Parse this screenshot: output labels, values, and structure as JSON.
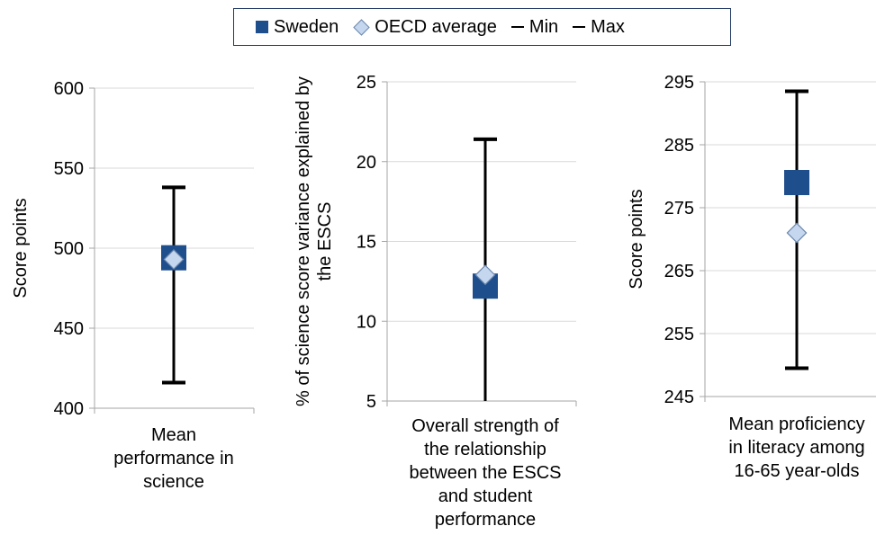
{
  "legend": {
    "sweden": "Sweden",
    "oecd": "OECD average",
    "min": "Min",
    "max": "Max"
  },
  "colors": {
    "sweden": "#1f4e8c",
    "oecd_fill": "#c5d7ee",
    "oecd_stroke": "#6b87ad",
    "whisker": "#000000",
    "grid": "#d9d9d9",
    "axis": "#a6a6a6"
  },
  "chart_data": [
    {
      "type": "scatter",
      "ylabel": "Score points",
      "ylim": [
        400,
        600
      ],
      "yticks": [
        400,
        450,
        500,
        550,
        600
      ],
      "category": [
        "Mean",
        "performance in",
        "science"
      ],
      "sweden": 494,
      "oecd_average": 493,
      "min": 416,
      "max": 538,
      "grid": true
    },
    {
      "type": "scatter",
      "ylabel": [
        "% of science score variance explained by",
        "the ESCS"
      ],
      "ylim": [
        5,
        25
      ],
      "yticks": [
        5,
        10,
        15,
        20,
        25
      ],
      "category": [
        "Overall strength of",
        "the relationship",
        "between the ESCS",
        "and student",
        "performance"
      ],
      "sweden": 12.2,
      "oecd_average": 12.9,
      "min": 5,
      "max": 21.4,
      "grid": true
    },
    {
      "type": "scatter",
      "ylabel": "Score points",
      "ylim": [
        245,
        295
      ],
      "yticks": [
        245,
        255,
        265,
        275,
        285,
        295
      ],
      "category": [
        "Mean proficiency",
        "in literacy among",
        "16-65 year-olds"
      ],
      "sweden": 279,
      "oecd_average": 271,
      "min": 249.5,
      "max": 293.5,
      "grid": true
    }
  ]
}
